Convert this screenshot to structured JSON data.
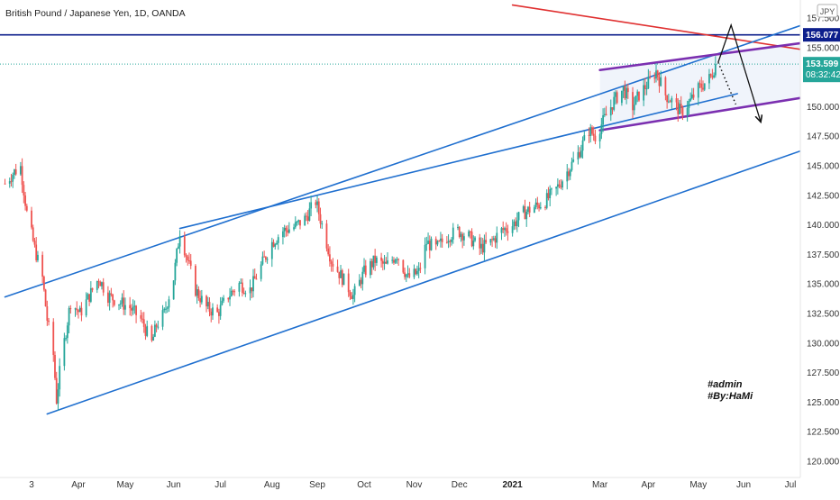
{
  "chart_data": {
    "type": "candlestick",
    "symbol_title": "British Pound / Japanese Yen, 1D, OANDA",
    "currency": "JPY",
    "ylim": [
      119.0,
      158.3
    ],
    "y_ticks": [
      "157.500",
      "155.000",
      "152.500",
      "150.000",
      "147.500",
      "145.000",
      "142.500",
      "140.000",
      "137.500",
      "135.000",
      "132.500",
      "130.000",
      "127.500",
      "125.000",
      "122.500",
      "120.000"
    ],
    "x_ticks": [
      {
        "label": "3",
        "date": "2020-03-02",
        "bold": false
      },
      {
        "label": "Apr",
        "date": "2020-04-01",
        "bold": false
      },
      {
        "label": "May",
        "date": "2020-05-01",
        "bold": false
      },
      {
        "label": "Jun",
        "date": "2020-06-01",
        "bold": false
      },
      {
        "label": "Jul",
        "date": "2020-07-01",
        "bold": false
      },
      {
        "label": "Aug",
        "date": "2020-08-03",
        "bold": false
      },
      {
        "label": "Sep",
        "date": "2020-09-01",
        "bold": false
      },
      {
        "label": "Oct",
        "date": "2020-10-01",
        "bold": false
      },
      {
        "label": "Nov",
        "date": "2020-11-02",
        "bold": false
      },
      {
        "label": "Dec",
        "date": "2020-12-01",
        "bold": false
      },
      {
        "label": "2021",
        "date": "2021-01-04",
        "bold": true
      },
      {
        "label": "Mar",
        "date": "2021-03-01",
        "bold": false
      },
      {
        "label": "Apr",
        "date": "2021-04-01",
        "bold": false
      },
      {
        "label": "May",
        "date": "2021-05-03",
        "bold": false
      },
      {
        "label": "Jun",
        "date": "2021-06-01",
        "bold": false
      },
      {
        "label": "Jul",
        "date": "2021-07-01",
        "bold": false
      }
    ],
    "price_path": [
      [
        "2020-02-14",
        143.5
      ],
      [
        "2020-02-20",
        144.5
      ],
      [
        "2020-02-24",
        144.9
      ],
      [
        "2020-02-28",
        141.0
      ],
      [
        "2020-03-04",
        138.0
      ],
      [
        "2020-03-09",
        135.5
      ],
      [
        "2020-03-12",
        132.0
      ],
      [
        "2020-03-16",
        129.0
      ],
      [
        "2020-03-18",
        125.2
      ],
      [
        "2020-03-20",
        127.5
      ],
      [
        "2020-03-24",
        131.0
      ],
      [
        "2020-03-27",
        133.5
      ],
      [
        "2020-04-02",
        132.5
      ],
      [
        "2020-04-08",
        134.0
      ],
      [
        "2020-04-14",
        135.5
      ],
      [
        "2020-04-20",
        134.0
      ],
      [
        "2020-04-27",
        133.5
      ],
      [
        "2020-05-04",
        133.0
      ],
      [
        "2020-05-11",
        132.0
      ],
      [
        "2020-05-18",
        130.0
      ],
      [
        "2020-05-21",
        131.5
      ],
      [
        "2020-05-26",
        132.5
      ],
      [
        "2020-06-01",
        135.5
      ],
      [
        "2020-06-05",
        139.5
      ],
      [
        "2020-06-10",
        137.0
      ],
      [
        "2020-06-15",
        134.5
      ],
      [
        "2020-06-22",
        133.0
      ],
      [
        "2020-06-29",
        132.5
      ],
      [
        "2020-07-06",
        134.0
      ],
      [
        "2020-07-13",
        135.0
      ],
      [
        "2020-07-20",
        134.5
      ],
      [
        "2020-07-27",
        136.5
      ],
      [
        "2020-08-03",
        138.5
      ],
      [
        "2020-08-10",
        139.5
      ],
      [
        "2020-08-17",
        139.8
      ],
      [
        "2020-08-24",
        140.5
      ],
      [
        "2020-08-31",
        142.0
      ],
      [
        "2020-09-03",
        140.5
      ],
      [
        "2020-09-10",
        137.0
      ],
      [
        "2020-09-17",
        135.5
      ],
      [
        "2020-09-24",
        134.0
      ],
      [
        "2020-10-01",
        136.0
      ],
      [
        "2020-10-08",
        137.0
      ],
      [
        "2020-10-15",
        136.5
      ],
      [
        "2020-10-22",
        137.5
      ],
      [
        "2020-10-29",
        135.5
      ],
      [
        "2020-11-05",
        136.0
      ],
      [
        "2020-11-10",
        138.5
      ],
      [
        "2020-11-16",
        138.0
      ],
      [
        "2020-11-23",
        139.0
      ],
      [
        "2020-11-30",
        139.5
      ],
      [
        "2020-12-07",
        139.0
      ],
      [
        "2020-12-14",
        138.0
      ],
      [
        "2020-12-21",
        138.5
      ],
      [
        "2020-12-28",
        139.5
      ],
      [
        "2021-01-04",
        140.0
      ],
      [
        "2021-01-11",
        141.0
      ],
      [
        "2021-01-18",
        141.5
      ],
      [
        "2021-01-25",
        142.0
      ],
      [
        "2021-02-01",
        143.0
      ],
      [
        "2021-02-08",
        144.5
      ],
      [
        "2021-02-15",
        146.0
      ],
      [
        "2021-02-22",
        148.0
      ],
      [
        "2021-02-26",
        147.5
      ],
      [
        "2021-03-04",
        149.0
      ],
      [
        "2021-03-10",
        150.5
      ],
      [
        "2021-03-16",
        151.5
      ],
      [
        "2021-03-22",
        150.0
      ],
      [
        "2021-03-26",
        151.0
      ],
      [
        "2021-04-01",
        152.0
      ],
      [
        "2021-04-06",
        153.0
      ],
      [
        "2021-04-12",
        151.0
      ],
      [
        "2021-04-16",
        150.5
      ],
      [
        "2021-04-22",
        149.5
      ],
      [
        "2021-04-28",
        150.5
      ],
      [
        "2021-05-03",
        151.5
      ],
      [
        "2021-05-07",
        152.0
      ],
      [
        "2021-05-11",
        152.5
      ],
      [
        "2021-05-14",
        153.599
      ]
    ],
    "levels": [
      {
        "name": "horizontal-resistance",
        "price": 156.077,
        "color": "#0d1f8c"
      },
      {
        "name": "last-price-line",
        "price": 153.599,
        "color": "#26a69a"
      }
    ],
    "trendlines": [
      {
        "name": "red-downtrend",
        "color": "#e03030",
        "p1": [
          "2021-01-04",
          158.6
        ],
        "p2": [
          "2021-07-15",
          154.7
        ]
      },
      {
        "name": "channel-upper",
        "color": "#1f6fcf",
        "p1": [
          "2020-02-14",
          133.9
        ],
        "p2": [
          "2021-07-15",
          157.2
        ]
      },
      {
        "name": "channel-lower",
        "color": "#1f6fcf",
        "p1": [
          "2020-03-12",
          124.0
        ],
        "p2": [
          "2021-07-15",
          146.6
        ]
      },
      {
        "name": "mid-trendline",
        "color": "#1f6fcf",
        "p1": [
          "2020-06-05",
          139.7
        ],
        "p2": [
          "2021-05-28",
          151.1
        ]
      },
      {
        "name": "wedge-top",
        "color": "#7b2fb0",
        "p1": [
          "2021-03-01",
          153.1
        ],
        "p2": [
          "2021-07-15",
          155.5
        ]
      },
      {
        "name": "wedge-bottom",
        "color": "#7b2fb0",
        "p1": [
          "2021-03-01",
          148.0
        ],
        "p2": [
          "2021-07-15",
          150.9
        ]
      }
    ],
    "projection": {
      "up_to": [
        "2021-05-24",
        156.9
      ],
      "down_to": [
        "2021-06-12",
        148.7
      ],
      "dotted_to": [
        "2021-05-27",
        150.2
      ]
    },
    "badges": {
      "resistance_price": "156.077",
      "last_price": "153.599",
      "countdown": "08:32:42"
    },
    "annotations": [
      "#admin",
      "#By:HaMi"
    ],
    "up_color": "#26a69a",
    "down_color": "#ef5350",
    "grid": false
  }
}
